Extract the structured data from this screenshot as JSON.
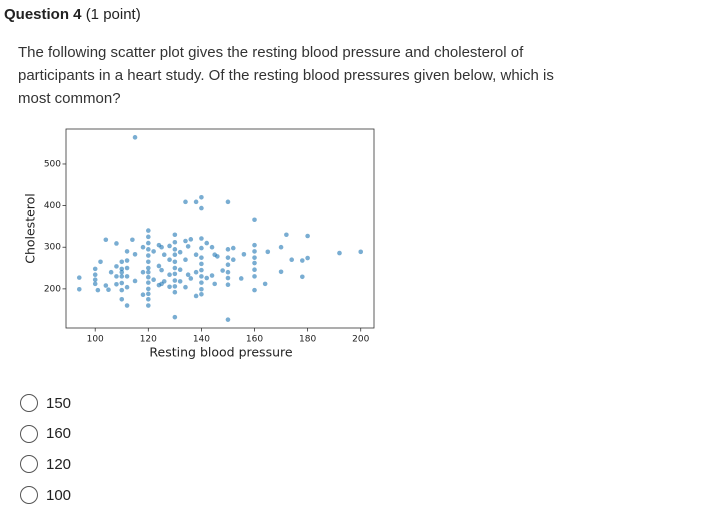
{
  "header": {
    "title": "Question 4",
    "points": "(1 point)"
  },
  "question": "The following scatter plot gives the resting blood pressure and cholesterol of participants in a heart study. Of the resting blood pressures given below, which is most common?",
  "chart_data": {
    "type": "scatter",
    "xlabel": "Resting blood pressure",
    "ylabel": "Cholesterol",
    "color": "#1f77b4",
    "xlim": [
      89,
      205
    ],
    "ylim": [
      106,
      584
    ],
    "xticks": [
      100,
      120,
      140,
      160,
      180,
      200
    ],
    "yticks": [
      200,
      300,
      400,
      500
    ],
    "x": [
      94,
      94,
      100,
      100,
      100,
      100,
      101,
      102,
      104,
      104,
      105,
      106,
      108,
      108,
      108,
      108,
      110,
      110,
      110,
      110,
      110,
      110,
      110,
      112,
      112,
      112,
      112,
      112,
      112,
      114,
      115,
      115,
      115,
      118,
      118,
      118,
      120,
      120,
      120,
      120,
      120,
      120,
      120,
      120,
      120,
      120,
      120,
      120,
      120,
      120,
      122,
      122,
      124,
      124,
      124,
      125,
      125,
      125,
      126,
      126,
      128,
      128,
      128,
      128,
      130,
      130,
      130,
      130,
      130,
      130,
      130,
      130,
      130,
      130,
      130,
      132,
      132,
      132,
      134,
      134,
      134,
      134,
      135,
      135,
      136,
      136,
      138,
      138,
      138,
      138,
      140,
      140,
      140,
      140,
      140,
      140,
      140,
      140,
      140,
      140,
      140,
      142,
      142,
      144,
      144,
      145,
      145,
      146,
      148,
      150,
      150,
      150,
      150,
      150,
      150,
      150,
      150,
      152,
      152,
      155,
      156,
      160,
      160,
      160,
      160,
      160,
      160,
      160,
      160,
      164,
      165,
      170,
      170,
      172,
      174,
      178,
      178,
      180,
      180,
      192,
      200
    ],
    "values": [
      199,
      227,
      234,
      248,
      222,
      212,
      197,
      265,
      318,
      208,
      198,
      240,
      309,
      230,
      211,
      254,
      265,
      240,
      230,
      214,
      197,
      248,
      175,
      290,
      268,
      250,
      230,
      204,
      160,
      318,
      564,
      283,
      219,
      300,
      240,
      186,
      340,
      325,
      310,
      295,
      280,
      265,
      250,
      240,
      228,
      215,
      200,
      188,
      175,
      160,
      290,
      222,
      305,
      255,
      209,
      300,
      245,
      212,
      282,
      218,
      303,
      270,
      234,
      205,
      330,
      312,
      295,
      282,
      265,
      250,
      236,
      220,
      206,
      192,
      132,
      288,
      246,
      218,
      409,
      315,
      270,
      204,
      302,
      234,
      319,
      225,
      409,
      282,
      240,
      183,
      420,
      394,
      321,
      298,
      275,
      260,
      245,
      230,
      215,
      199,
      187,
      310,
      226,
      300,
      232,
      282,
      212,
      278,
      244,
      409,
      295,
      275,
      258,
      240,
      226,
      210,
      126,
      270,
      298,
      225,
      283,
      366,
      305,
      290,
      275,
      262,
      246,
      230,
      197,
      212,
      289,
      300,
      241,
      330,
      270,
      229,
      268,
      327,
      274,
      286,
      289
    ]
  },
  "options": [
    "150",
    "160",
    "120",
    "100"
  ]
}
